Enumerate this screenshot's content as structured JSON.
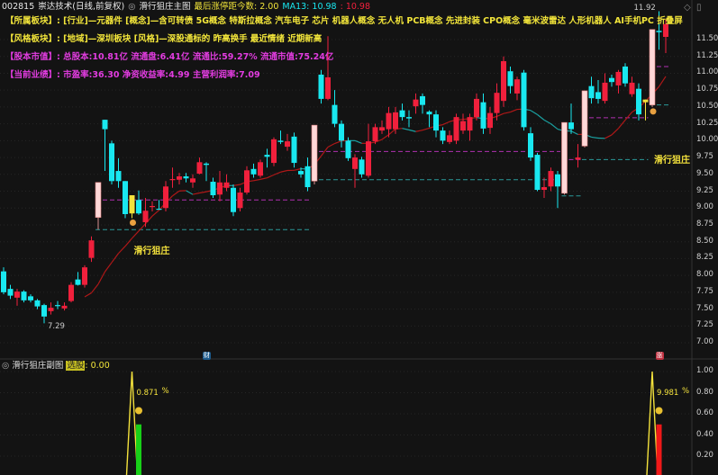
{
  "header": {
    "code": "002815",
    "name": "崇达技术(日线,前复权)",
    "indicator_icon": "target-icon",
    "indicator_name": "滑行狙庄主图",
    "last_limit_label": "最后涨停距今数: 2.00",
    "ma13_label": "MA13: 10.98",
    "ma_value2": ": 10.98"
  },
  "info_lines": [
    {
      "label": "【所属板块】:",
      "text": "[行业]—元器件 [概念]—含可转债 5G概念 特斯拉概念 汽车电子 芯片 机器人概念 无人机 PCB概念 先进封装 CPO概念 毫米波雷达 人形机器人 AI手机PC 折叠屏",
      "color": "#f2e53a"
    },
    {
      "label": "【风格板块】:",
      "text": "[地域]—深圳板块 [风格]—深股通标的 昨高换手 最近情绪 近期新高",
      "color": "#f2e53a"
    },
    {
      "label": "【股本市值】:",
      "text": "总股本:10.81亿 流通盘:6.41亿 流通比:59.27% 流通市值:75.24亿",
      "color": "#e23ce0"
    },
    {
      "label": "【当前业绩】:",
      "text": "市盈率:36.30 净资收益率:4.99 主营利润率:7.09",
      "color": "#e23ce0"
    }
  ],
  "colors": {
    "up": "#f0203c",
    "down": "#19e8f0",
    "limit": "#ffd8d8",
    "signal": "#f4e23c",
    "ma_up": "#b01818",
    "ma_down": "#1aa0a0",
    "level_high": "#b030b0",
    "level_low": "#2a9a9a"
  },
  "main_axis": {
    "ticks": [
      "11.50",
      "11.25",
      "11.00",
      "10.75",
      "10.50",
      "10.25",
      "10.00",
      "9.75",
      "9.50",
      "9.25",
      "9.00",
      "8.75",
      "8.50",
      "8.25",
      "8.00",
      "7.75",
      "7.50",
      "7.25",
      "7.00"
    ]
  },
  "chart_data": {
    "type": "candlestick",
    "ma_period": 13,
    "candles": [
      [
        8.06,
        8.12,
        7.72,
        7.75,
        "down"
      ],
      [
        7.8,
        7.86,
        7.65,
        7.7,
        "down"
      ],
      [
        7.67,
        7.8,
        7.55,
        7.76,
        "up"
      ],
      [
        7.76,
        7.78,
        7.6,
        7.63,
        "down"
      ],
      [
        7.69,
        7.72,
        7.6,
        7.63,
        "down"
      ],
      [
        7.63,
        7.65,
        7.5,
        7.54,
        "down"
      ],
      [
        7.56,
        7.58,
        7.29,
        7.39,
        "down"
      ],
      [
        7.47,
        7.6,
        7.42,
        7.52,
        "up"
      ],
      [
        7.56,
        7.62,
        7.5,
        7.55,
        "down"
      ],
      [
        7.51,
        7.6,
        7.48,
        7.55,
        "up"
      ],
      [
        7.62,
        7.9,
        7.6,
        7.86,
        "up"
      ],
      [
        7.94,
        8.05,
        7.85,
        7.86,
        "down"
      ],
      [
        7.86,
        8.15,
        7.82,
        8.12,
        "up"
      ],
      [
        8.26,
        8.58,
        8.2,
        8.52,
        "up"
      ],
      [
        8.86,
        9.38,
        8.68,
        9.38,
        "limit"
      ],
      [
        10.31,
        10.31,
        9.55,
        10.17,
        "down"
      ],
      [
        9.96,
        10.0,
        9.35,
        9.4,
        "down"
      ],
      [
        9.55,
        9.74,
        9.3,
        9.4,
        "down"
      ],
      [
        9.4,
        9.4,
        8.85,
        8.91,
        "down"
      ],
      [
        9.19,
        9.19,
        8.85,
        8.92,
        "signal"
      ],
      [
        9.12,
        9.26,
        8.9,
        8.92,
        "down"
      ],
      [
        8.79,
        9.15,
        8.72,
        8.96,
        "up"
      ],
      [
        9.02,
        9.1,
        8.95,
        9.03,
        "up"
      ],
      [
        8.99,
        9.12,
        8.98,
        8.99,
        "down"
      ],
      [
        9.0,
        9.4,
        8.95,
        9.32,
        "up"
      ],
      [
        9.42,
        9.6,
        9.3,
        9.43,
        "up"
      ],
      [
        9.42,
        9.52,
        9.35,
        9.47,
        "up"
      ],
      [
        9.47,
        9.52,
        9.38,
        9.44,
        "down"
      ],
      [
        9.38,
        9.5,
        9.3,
        9.44,
        "up"
      ],
      [
        9.51,
        9.75,
        9.5,
        9.68,
        "up"
      ],
      [
        9.66,
        9.68,
        9.4,
        9.64,
        "down"
      ],
      [
        9.39,
        9.45,
        9.15,
        9.19,
        "down"
      ],
      [
        9.2,
        9.55,
        9.1,
        9.38,
        "up"
      ],
      [
        9.3,
        9.5,
        9.25,
        9.38,
        "up"
      ],
      [
        9.3,
        9.35,
        8.88,
        8.94,
        "down"
      ],
      [
        9.0,
        9.3,
        8.95,
        9.23,
        "up"
      ],
      [
        9.23,
        9.62,
        9.2,
        9.56,
        "up"
      ],
      [
        9.58,
        9.66,
        9.45,
        9.5,
        "down"
      ],
      [
        9.48,
        9.72,
        9.45,
        9.68,
        "up"
      ],
      [
        9.79,
        9.88,
        9.6,
        9.76,
        "down"
      ],
      [
        9.67,
        10.05,
        9.62,
        10.02,
        "up"
      ],
      [
        10.0,
        10.15,
        9.95,
        9.98,
        "down"
      ],
      [
        9.91,
        10.1,
        9.85,
        9.99,
        "up"
      ],
      [
        10.06,
        10.12,
        9.6,
        9.67,
        "down"
      ],
      [
        9.55,
        9.6,
        9.45,
        9.5,
        "down"
      ],
      [
        9.62,
        9.75,
        9.25,
        9.31,
        "down"
      ],
      [
        9.4,
        10.23,
        9.35,
        10.23,
        "limit"
      ],
      [
        10.98,
        11.05,
        10.55,
        10.62,
        "down"
      ],
      [
        10.62,
        11.55,
        10.6,
        10.94,
        "up"
      ],
      [
        10.53,
        10.75,
        10.2,
        10.25,
        "down"
      ],
      [
        10.25,
        10.3,
        9.9,
        10.0,
        "down"
      ],
      [
        10.0,
        10.05,
        9.7,
        9.74,
        "down"
      ],
      [
        9.58,
        9.8,
        9.3,
        9.75,
        "up"
      ],
      [
        9.72,
        9.76,
        9.45,
        9.5,
        "down"
      ],
      [
        9.48,
        10.25,
        9.45,
        9.99,
        "up"
      ],
      [
        9.99,
        10.25,
        9.95,
        10.2,
        "up"
      ],
      [
        10.15,
        10.3,
        10.1,
        10.2,
        "up"
      ],
      [
        10.17,
        10.5,
        10.05,
        10.41,
        "up"
      ],
      [
        10.17,
        10.5,
        10.1,
        10.42,
        "up"
      ],
      [
        10.45,
        10.55,
        10.3,
        10.35,
        "down"
      ],
      [
        10.35,
        10.45,
        10.2,
        10.33,
        "down"
      ],
      [
        10.51,
        10.7,
        10.4,
        10.61,
        "up"
      ],
      [
        10.66,
        10.7,
        10.4,
        10.53,
        "down"
      ],
      [
        10.43,
        10.45,
        10.2,
        10.39,
        "down"
      ],
      [
        10.39,
        10.45,
        10.05,
        10.15,
        "down"
      ],
      [
        10.15,
        10.2,
        9.95,
        10.0,
        "down"
      ],
      [
        9.98,
        10.15,
        9.95,
        10.08,
        "up"
      ],
      [
        10.0,
        10.4,
        9.95,
        10.35,
        "up"
      ],
      [
        10.15,
        10.4,
        10.1,
        10.29,
        "up"
      ],
      [
        10.15,
        10.4,
        10.0,
        10.35,
        "up"
      ],
      [
        10.35,
        10.7,
        10.3,
        10.62,
        "up"
      ],
      [
        10.57,
        10.7,
        10.1,
        10.18,
        "down"
      ],
      [
        10.19,
        10.5,
        10.1,
        10.41,
        "up"
      ],
      [
        10.41,
        10.85,
        10.3,
        10.71,
        "up"
      ],
      [
        10.59,
        11.25,
        10.5,
        11.18,
        "up"
      ],
      [
        11.03,
        11.1,
        10.7,
        10.81,
        "down"
      ],
      [
        10.7,
        10.95,
        10.6,
        10.91,
        "up"
      ],
      [
        11.01,
        11.05,
        10.15,
        10.2,
        "down"
      ],
      [
        10.11,
        10.2,
        9.7,
        9.75,
        "down"
      ],
      [
        9.79,
        9.82,
        9.25,
        9.27,
        "down"
      ],
      [
        9.27,
        9.45,
        9.15,
        9.31,
        "up"
      ],
      [
        9.32,
        9.6,
        9.25,
        9.55,
        "up"
      ],
      [
        9.5,
        9.55,
        9.0,
        9.32,
        "down"
      ],
      [
        9.22,
        10.27,
        9.2,
        10.27,
        "limit"
      ],
      [
        10.27,
        10.55,
        10.1,
        10.17,
        "down"
      ],
      [
        9.72,
        9.95,
        9.6,
        9.75,
        "up"
      ],
      [
        9.92,
        10.74,
        9.9,
        10.74,
        "limit"
      ],
      [
        10.81,
        10.95,
        10.55,
        10.63,
        "down"
      ],
      [
        10.72,
        10.9,
        10.55,
        10.62,
        "down"
      ],
      [
        10.59,
        11.0,
        10.55,
        10.86,
        "up"
      ],
      [
        10.93,
        10.98,
        10.8,
        10.87,
        "down"
      ],
      [
        10.82,
        11.05,
        10.7,
        11.02,
        "up"
      ],
      [
        11.1,
        11.15,
        10.8,
        10.85,
        "down"
      ],
      [
        10.69,
        10.95,
        10.65,
        10.86,
        "up"
      ],
      [
        10.77,
        10.85,
        10.3,
        10.39,
        "down"
      ],
      [
        10.61,
        10.61,
        10.3,
        10.57,
        "signal"
      ],
      [
        10.53,
        11.65,
        10.5,
        11.65,
        "limit"
      ],
      [
        11.63,
        11.92,
        11.35,
        11.61,
        "down"
      ],
      [
        11.54,
        11.8,
        11.3,
        11.73,
        "up"
      ]
    ],
    "levels": [
      {
        "from": 14,
        "to": 45,
        "high": 9.12,
        "low": 8.68
      },
      {
        "from": 46,
        "to": 82,
        "high": 9.84,
        "low": 9.42
      },
      {
        "from": 83,
        "to": 85,
        "high": 9.72,
        "low": 9.18
      },
      {
        "from": 86,
        "to": 95,
        "high": 10.34,
        "low": 9.72
      },
      {
        "from": 96,
        "to": 98,
        "high": 11.1,
        "low": 10.53
      }
    ],
    "high_label": "11.92",
    "low_label": "7.29",
    "signal_labels": [
      {
        "candle": 19,
        "price": 8.4,
        "text": "滑行狙庄"
      },
      {
        "candle": 96,
        "price": 9.75,
        "text": "滑行狙庄"
      }
    ]
  },
  "event_badges": [
    {
      "candle": 30,
      "text": "财",
      "color": "#1c5a8c"
    },
    {
      "candle": 97,
      "text": "涨",
      "color": "#c03040"
    }
  ],
  "sub_chart": {
    "title": "滑行狙庄副图",
    "pick_label": "选股",
    "pick_value": ": 0.00",
    "axis_ticks": [
      "1.00",
      "0.80",
      "0.60",
      "0.40",
      "0.20"
    ],
    "spikes": [
      {
        "candle": 19,
        "peak": 1.0,
        "bar_candle": 20,
        "bar": 0.5,
        "bar_color": "#18d018",
        "value_label": "0.871",
        "unit": "%"
      },
      {
        "candle": 96,
        "peak": 1.0,
        "bar_candle": 97,
        "bar": 0.5,
        "bar_color": "#f01818",
        "value_label": "9.981",
        "unit": "%"
      }
    ]
  }
}
